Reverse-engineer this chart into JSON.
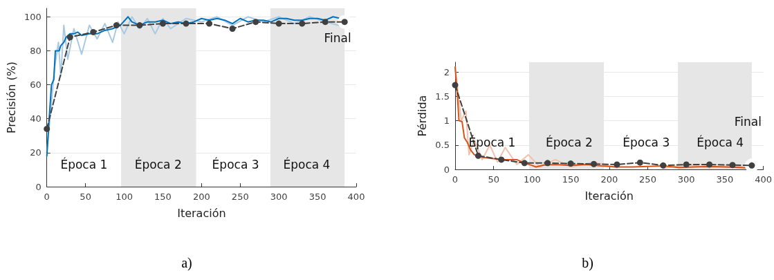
{
  "chart_data": [
    {
      "type": "line",
      "xlabel": "Iteración",
      "ylabel": "Precisión (%)",
      "xlim": [
        0,
        400
      ],
      "xticks": [
        0,
        50,
        100,
        150,
        200,
        250,
        300,
        350,
        400
      ],
      "ylim": [
        0,
        105
      ],
      "yticks": [
        0,
        20,
        40,
        60,
        80,
        100
      ],
      "grid": "y",
      "series": [
        {
          "color": "#a9c9e3",
          "marker": "none",
          "line_style": "solid",
          "x": [
            0,
            10,
            15,
            18,
            22,
            27,
            35,
            45,
            55,
            65,
            75,
            85,
            92,
            100,
            110,
            120,
            130,
            140,
            150,
            160,
            180,
            200,
            220,
            240,
            260,
            280,
            300,
            320,
            340,
            360,
            385
          ],
          "values": [
            20,
            70,
            85,
            65,
            95,
            75,
            93,
            78,
            95,
            87,
            96,
            85,
            97,
            90,
            100,
            93,
            99,
            90,
            99,
            93,
            99,
            97,
            100,
            95,
            100,
            97,
            100,
            96,
            100,
            97,
            94
          ]
        },
        {
          "color": "#0072bd",
          "marker": "none",
          "line_style": "solid",
          "x": [
            0,
            3,
            6,
            9,
            11,
            16,
            18,
            22,
            25,
            30,
            35,
            40,
            45,
            55,
            65,
            75,
            85,
            95,
            105,
            110,
            120,
            130,
            140,
            150,
            160,
            170,
            180,
            190,
            200,
            210,
            220,
            230,
            240,
            250,
            260,
            270,
            280,
            290,
            300,
            310,
            320,
            330,
            340,
            350,
            360,
            370,
            380
          ],
          "values": [
            18,
            40,
            60,
            63,
            80,
            80,
            83,
            85,
            88,
            90,
            90,
            91,
            89,
            90,
            90,
            92,
            93,
            95,
            100,
            97,
            95,
            97,
            97,
            98,
            96,
            97,
            96,
            97,
            99,
            98,
            99,
            98,
            96,
            99,
            97,
            98,
            98,
            97,
            99,
            99,
            98,
            98,
            99,
            99,
            98,
            100,
            99
          ]
        },
        {
          "color": "#404040",
          "marker": "circle",
          "line_style": "dashed",
          "x": [
            0,
            30,
            60,
            90,
            120,
            150,
            180,
            210,
            240,
            270,
            300,
            330,
            360,
            385
          ],
          "values": [
            34,
            88,
            91,
            95,
            95,
            96,
            96,
            96,
            93,
            97,
            96,
            96,
            97,
            97
          ]
        }
      ],
      "bands": [
        {
          "axis": "x",
          "from": 96,
          "to": 193,
          "color": "#e6e6e6"
        },
        {
          "axis": "x",
          "from": 289,
          "to": 385,
          "color": "#e6e6e6"
        }
      ],
      "annotations": [
        "Época 1",
        "Época 2",
        "Época 3",
        "Época 4",
        "Final",
        "a)"
      ]
    },
    {
      "type": "line",
      "xlabel": "Iteración",
      "ylabel": "Pérdida",
      "xlim": [
        0,
        400
      ],
      "xticks": [
        0,
        50,
        100,
        150,
        200,
        250,
        300,
        350,
        400
      ],
      "ylim": [
        0,
        2.2
      ],
      "yticks": [
        0,
        0.5,
        1,
        1.5,
        2
      ],
      "grid": "y",
      "series": [
        {
          "color": "#f0c2ab",
          "marker": "none",
          "line_style": "solid",
          "x": [
            0,
            8,
            14,
            18,
            25,
            35,
            45,
            55,
            65,
            80,
            95,
            110,
            130,
            150,
            180,
            210,
            240,
            270,
            300,
            330,
            360,
            385
          ],
          "values": [
            2.1,
            1.0,
            1.2,
            0.3,
            0.6,
            0.2,
            0.5,
            0.15,
            0.45,
            0.1,
            0.3,
            0.05,
            0.2,
            0.05,
            0.15,
            0.03,
            null,
            0.02,
            0.1,
            0.03,
            0.08,
            0.02
          ]
        },
        {
          "color": "#d95319",
          "marker": "none",
          "line_style": "solid",
          "x": [
            0,
            3,
            5,
            9,
            12,
            16,
            20,
            25,
            35,
            50,
            65,
            80,
            90,
            100,
            105,
            115,
            130,
            150,
            170,
            190,
            210,
            230,
            250,
            270,
            290,
            310,
            330,
            350,
            370,
            378
          ],
          "values": [
            2.1,
            1.5,
            1.0,
            0.98,
            0.65,
            0.55,
            0.4,
            0.3,
            0.25,
            0.22,
            0.2,
            0.2,
            0.13,
            0.08,
            0.05,
            0.09,
            0.1,
            0.08,
            0.1,
            0.07,
            0.05,
            0.05,
            0.06,
            0.07,
            0.04,
            0.05,
            0.06,
            0.05,
            0.04,
            0.03
          ]
        },
        {
          "color": "#404040",
          "marker": "circle",
          "line_style": "dashed",
          "x": [
            0,
            30,
            60,
            90,
            120,
            150,
            180,
            210,
            240,
            270,
            300,
            330,
            360,
            385
          ],
          "values": [
            1.73,
            0.28,
            0.2,
            0.13,
            0.13,
            0.12,
            0.11,
            0.1,
            0.14,
            0.08,
            0.1,
            0.1,
            0.09,
            0.08
          ]
        }
      ],
      "bands": [
        {
          "axis": "x",
          "from": 96,
          "to": 193,
          "color": "#e6e6e6"
        },
        {
          "axis": "x",
          "from": 289,
          "to": 385,
          "color": "#e6e6e6"
        }
      ],
      "annotations": [
        "Época 1",
        "Época 2",
        "Época 3",
        "Época 4",
        "Final",
        "b)"
      ]
    }
  ]
}
